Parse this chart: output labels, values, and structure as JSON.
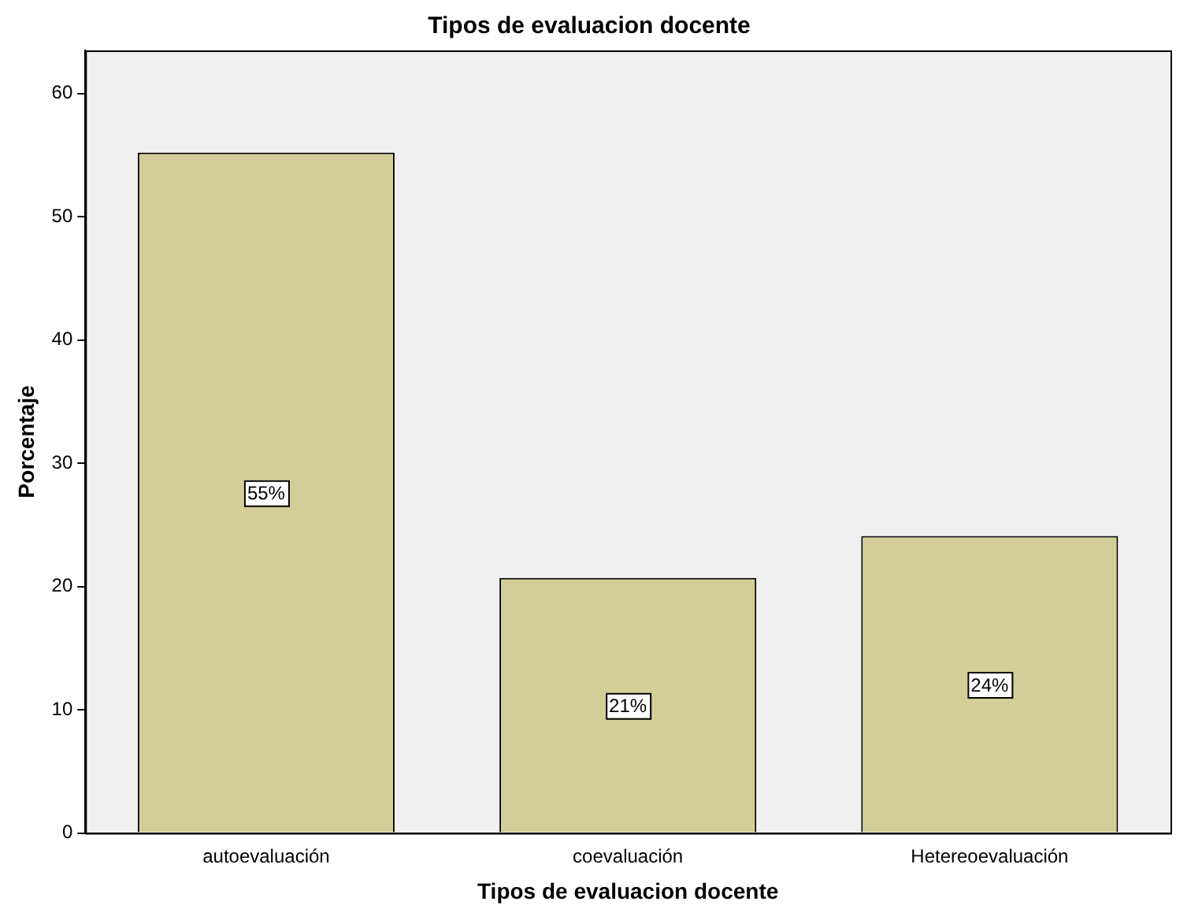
{
  "chart_data": {
    "type": "bar",
    "title": "Tipos de evaluacion docente",
    "xlabel": "Tipos de evaluacion docente",
    "ylabel": "Porcentaje",
    "categories": [
      "autoevaluación",
      "coevaluación",
      "Hetereoevaluación"
    ],
    "values": [
      55.2,
      20.7,
      24.1
    ],
    "value_labels": [
      "55%",
      "21%",
      "24%"
    ],
    "color": "#d3ce97",
    "ylim": [
      0,
      63.5
    ],
    "yticks": [
      0,
      10,
      20,
      30,
      40,
      50,
      60
    ],
    "grid": false,
    "legend": false
  }
}
